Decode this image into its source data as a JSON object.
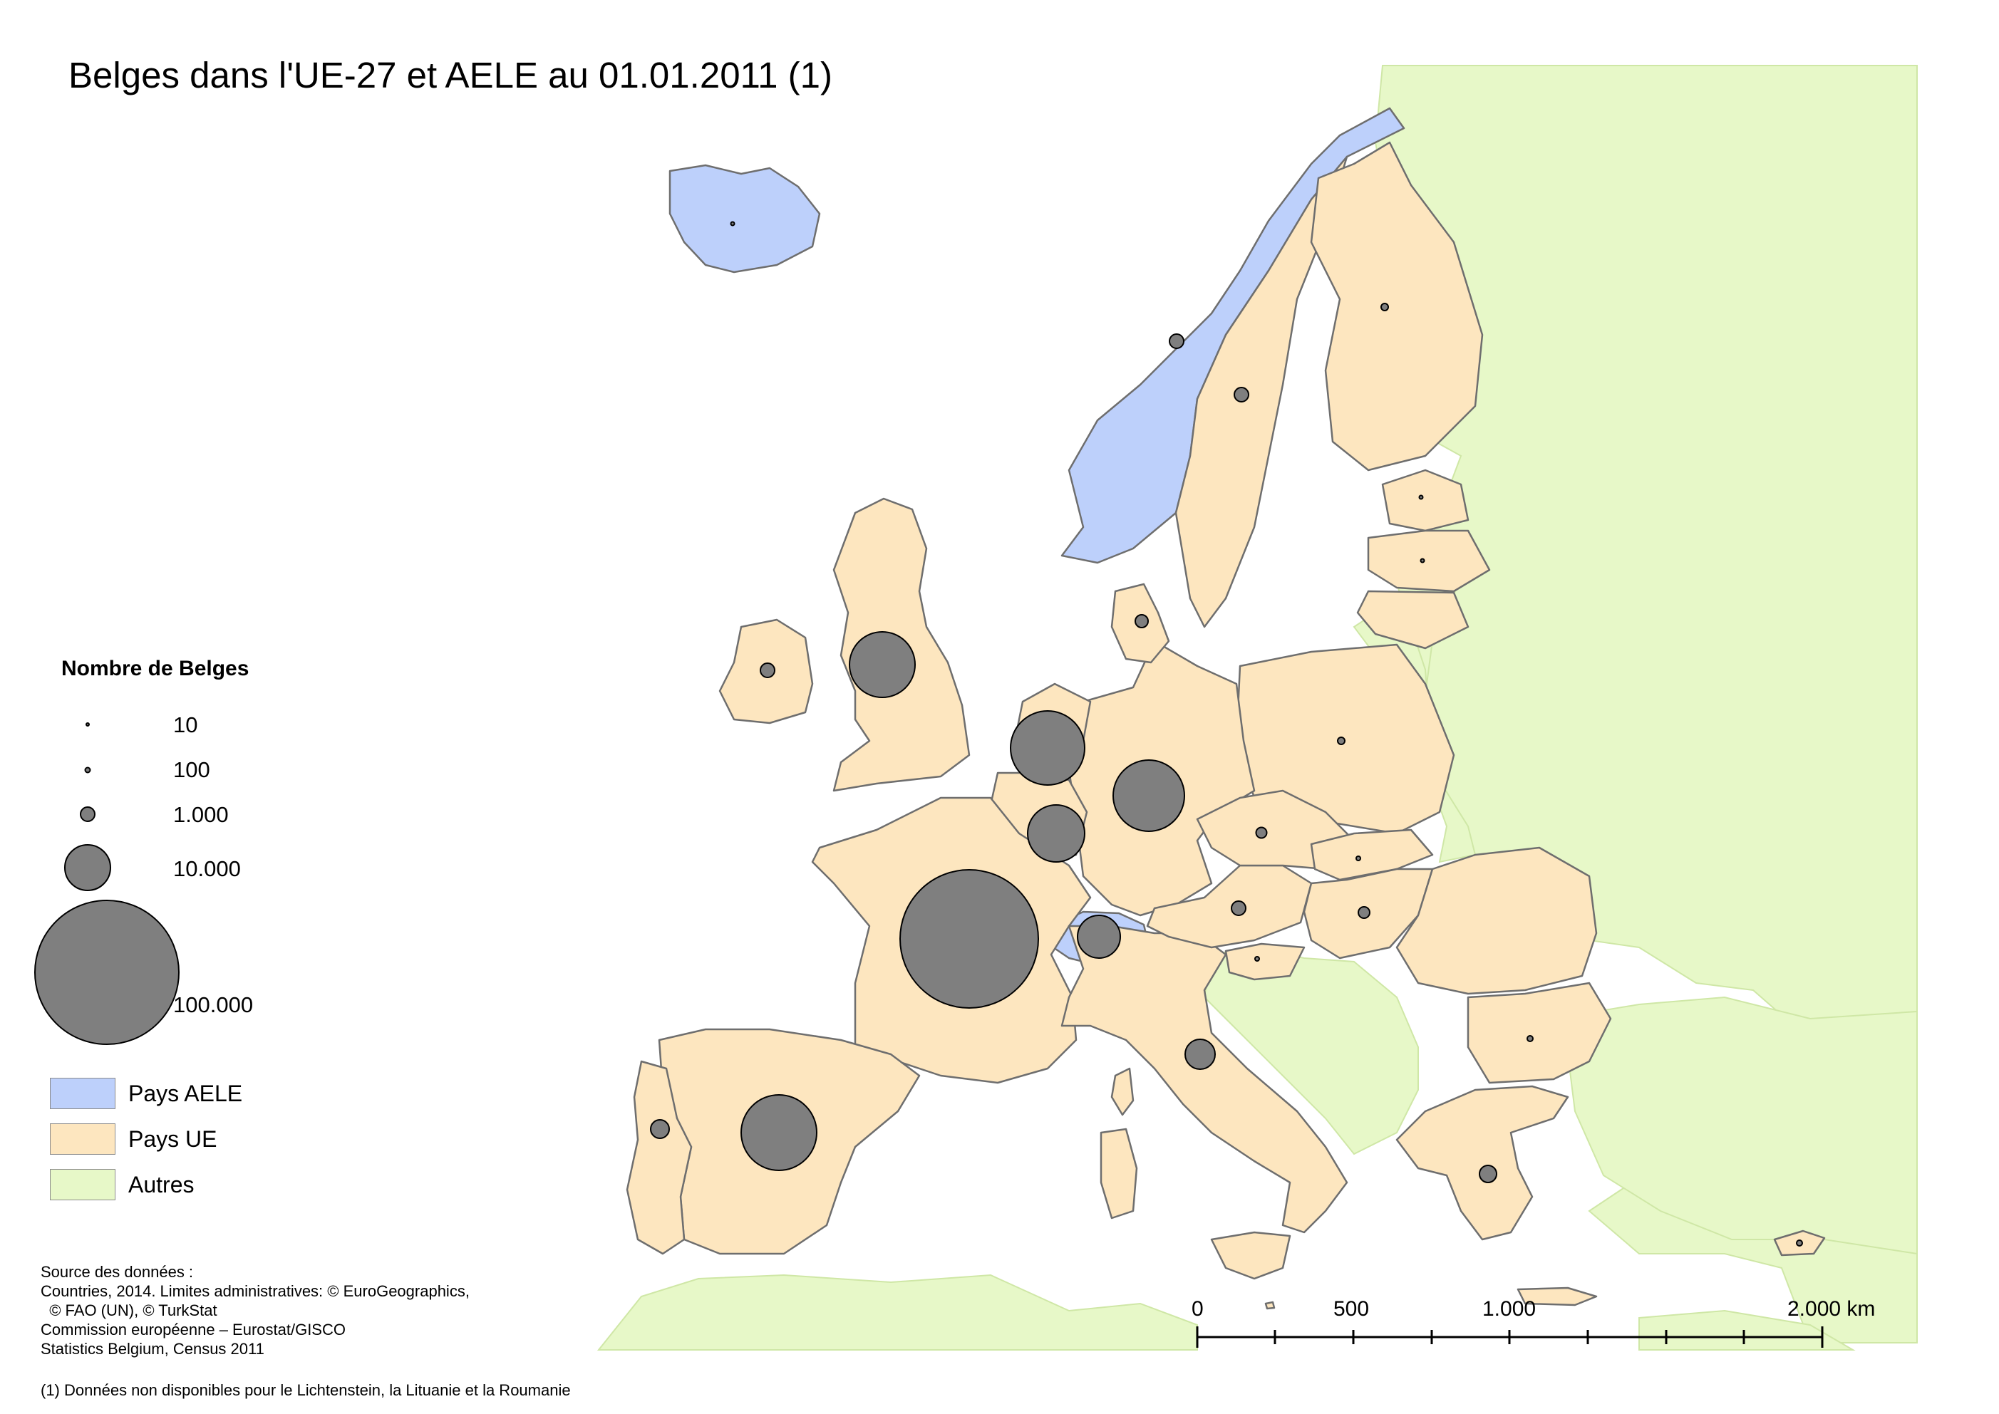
{
  "title": "Belges dans l'UE-27 et AELE au 01.01.2011 (1)",
  "colors": {
    "aele": "#bdd0fb",
    "ue": "#fde6bf",
    "autres": "#e7f8c8",
    "sea": "#ffffff",
    "border": "#6e6e6e",
    "symbol": "#7f7f7f"
  },
  "legend": {
    "title": "Nombre de Belges",
    "sizes": [
      {
        "label": "10",
        "value": 10
      },
      {
        "label": "100",
        "value": 100
      },
      {
        "label": "1.000",
        "value": 1000
      },
      {
        "label": "10.000",
        "value": 10000
      },
      {
        "label": "100.000",
        "value": 100000
      }
    ],
    "categories": [
      {
        "label": "Pays AELE",
        "color": "#bdd0fb"
      },
      {
        "label": "Pays UE",
        "color": "#fde6bf"
      },
      {
        "label": "Autres",
        "color": "#e7f8c8"
      }
    ]
  },
  "source": {
    "lines": [
      "Source des données :",
      "Countries, 2014. Limites administratives: © EuroGeographics,",
      "  © FAO (UN), © TurkStat",
      "Commission européenne – Eurostat/GISCO",
      "Statistics Belgium, Census 2011"
    ]
  },
  "footnote": "(1) Données non disponibles pour le Lichtenstein, la Lituanie et la Roumanie",
  "scale_bar": {
    "labels": [
      "0",
      "500",
      "1.000",
      "2.000 km"
    ]
  },
  "proportional_symbols": [
    {
      "country": "France",
      "approx_value": 125000
    },
    {
      "country": "Pays-Bas",
      "approx_value": 35000
    },
    {
      "country": "Allemagne",
      "approx_value": 32000
    },
    {
      "country": "Espagne",
      "approx_value": 36000
    },
    {
      "country": "Royaume-Uni",
      "approx_value": 27000
    },
    {
      "country": "Luxembourg",
      "approx_value": 20000
    },
    {
      "country": "Suisse",
      "approx_value": 11000
    },
    {
      "country": "Italie",
      "approx_value": 6000
    },
    {
      "country": "Portugal",
      "approx_value": 3000
    },
    {
      "country": "Grèce",
      "approx_value": 2500
    },
    {
      "country": "Suède",
      "approx_value": 2000
    },
    {
      "country": "Norvège",
      "approx_value": 2000
    },
    {
      "country": "Irlande",
      "approx_value": 2000
    },
    {
      "country": "Danemark",
      "approx_value": 1600
    },
    {
      "country": "Autriche",
      "approx_value": 2000
    },
    {
      "country": "Hongrie",
      "approx_value": 1200
    },
    {
      "country": "République tchèque",
      "approx_value": 1000
    },
    {
      "country": "Pologne",
      "approx_value": 600
    },
    {
      "country": "Finlande",
      "approx_value": 600
    },
    {
      "country": "Bulgarie",
      "approx_value": 350
    },
    {
      "country": "Chypre",
      "approx_value": 250
    },
    {
      "country": "Slovénie",
      "approx_value": 150
    },
    {
      "country": "Slovaquie",
      "approx_value": 150
    },
    {
      "country": "Islande",
      "approx_value": 60
    },
    {
      "country": "Estonie",
      "approx_value": 50
    },
    {
      "country": "Lettonie",
      "approx_value": 50
    }
  ]
}
